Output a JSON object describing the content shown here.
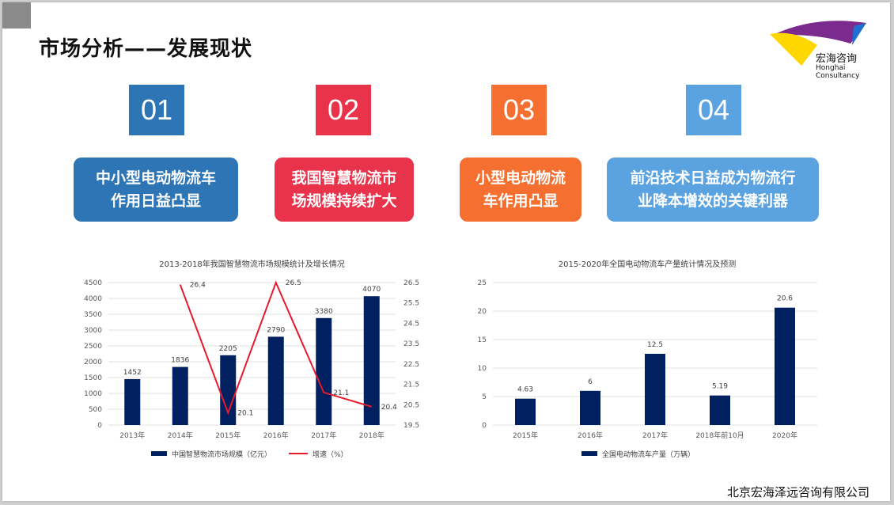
{
  "title": "市场分析——发展现状",
  "logo": {
    "name_cn": "宏海咨询",
    "name_en": "Honghai Consultancy"
  },
  "points": [
    {
      "num": "01",
      "text_line1": "中小型电动物流车",
      "text_line2": "作用日益凸显",
      "color": "#2e75b6"
    },
    {
      "num": "02",
      "text_line1": "我国智慧物流市",
      "text_line2": "场规模持续扩大",
      "color": "#e8334a"
    },
    {
      "num": "03",
      "text_line1": "小型电动物流",
      "text_line2": "车作用凸显",
      "color": "#f46f30"
    },
    {
      "num": "04",
      "text_line1": "前沿技术日益成为物流行",
      "text_line2": "业降本增效的关键利器",
      "color": "#5ba3e0"
    }
  ],
  "footer": "北京宏海泽远咨询有限公司",
  "chart_data": [
    {
      "type": "bar",
      "title": "2013-2018年我国智慧物流市场规模统计及增长情况",
      "categories": [
        "2013年",
        "2014年",
        "2015年",
        "2016年",
        "2017年",
        "2018年"
      ],
      "series": [
        {
          "name": "中国智慧物流市场规模（亿元）",
          "type": "bar",
          "values": [
            1452,
            1836,
            2205,
            2790,
            3380,
            4070
          ],
          "color": "#002060"
        },
        {
          "name": "增速（%）",
          "type": "line",
          "axis": "right",
          "values": [
            null,
            26.4,
            20.1,
            26.5,
            21.1,
            20.4
          ],
          "color": "#e8192c"
        }
      ],
      "ylim": [
        0,
        4500
      ],
      "yticks": [
        0,
        500,
        1000,
        1500,
        2000,
        2500,
        3000,
        3500,
        4000,
        4500
      ],
      "y2lim": [
        19.5,
        26.5
      ],
      "y2ticks": [
        "19.5",
        "20.5",
        "21.5",
        "22.5",
        "23.5",
        "24.5",
        "25.5",
        "26.5"
      ],
      "legend": "bottom"
    },
    {
      "type": "bar",
      "title": "2015-2020年全国电动物流车产量统计情况及预测",
      "categories": [
        "2015年",
        "2016年",
        "2017年",
        "2018年前10月",
        "2020年"
      ],
      "series": [
        {
          "name": "全国电动物流车产量（万辆）",
          "values": [
            4.63,
            6,
            12.5,
            5.19,
            20.6
          ],
          "labels": [
            "4.63",
            "6",
            "12.5",
            "5.19",
            "20.6"
          ],
          "color": "#002060"
        }
      ],
      "ylim": [
        0,
        25
      ],
      "yticks": [
        0,
        5,
        10,
        15,
        20,
        25
      ],
      "legend": "bottom"
    }
  ]
}
